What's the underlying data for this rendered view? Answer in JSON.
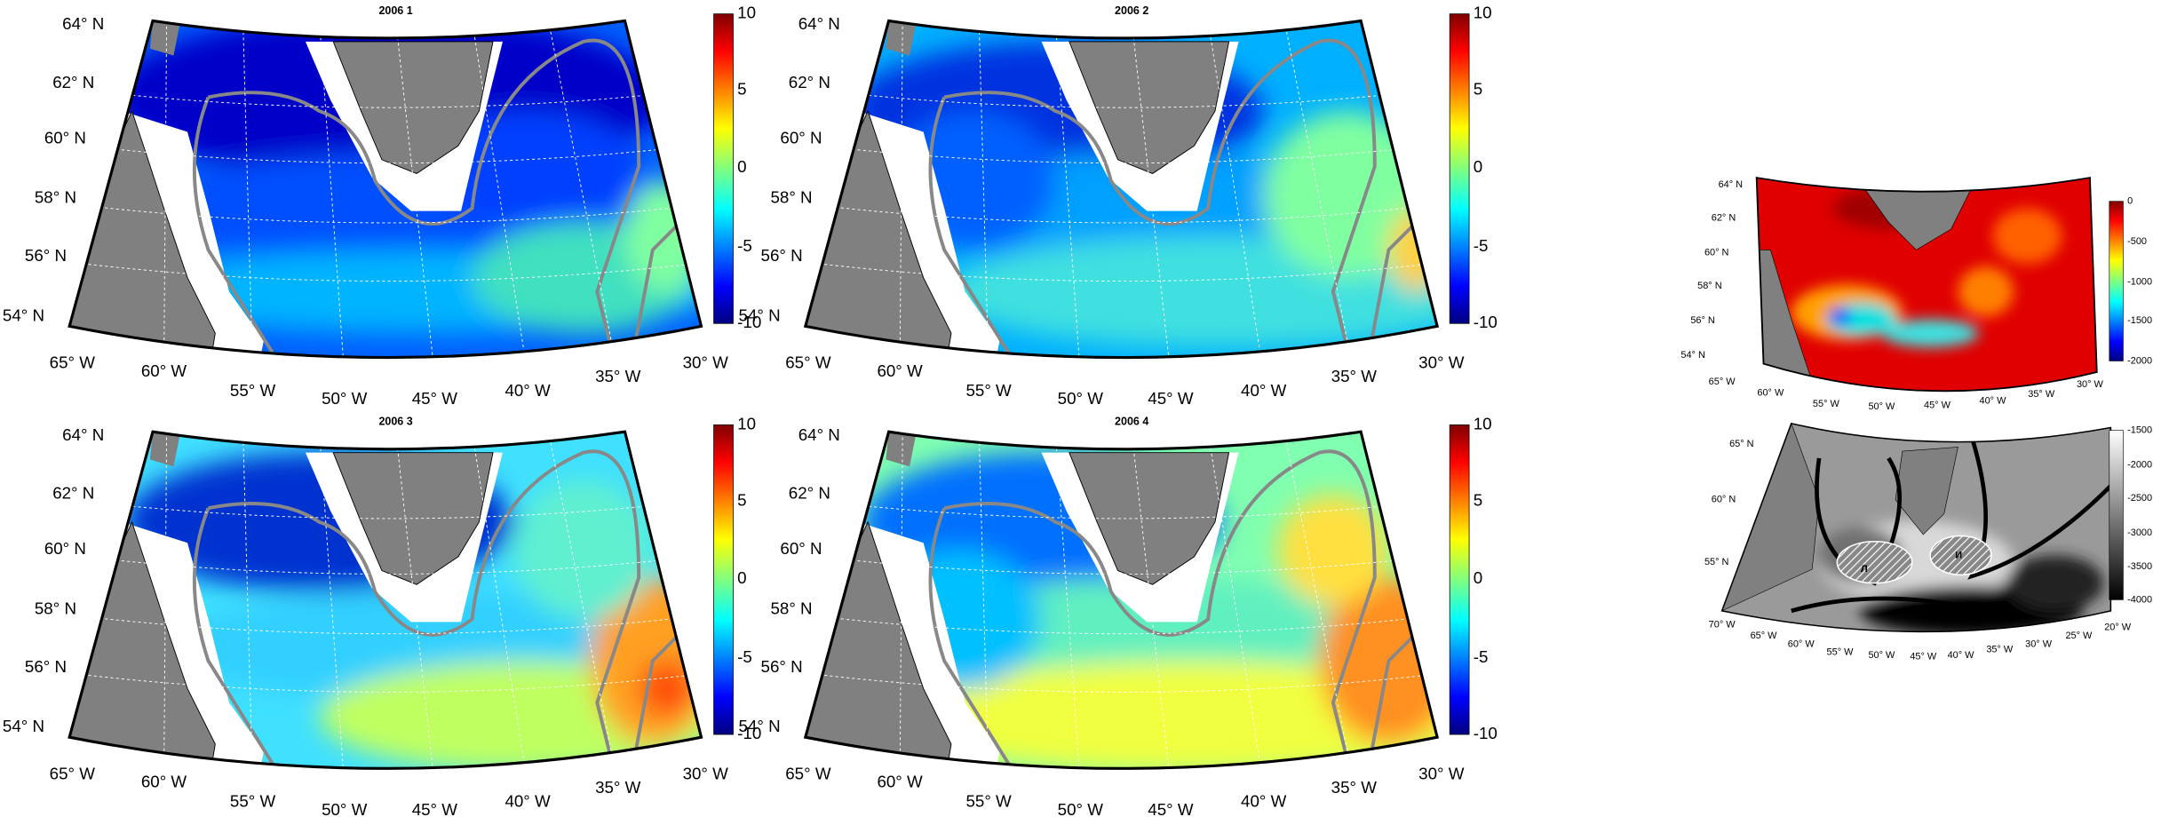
{
  "panels": [
    {
      "title": "2006 1",
      "lat_labels": [
        "64° N",
        "62° N",
        "60° N",
        "58° N",
        "56° N",
        "54° N"
      ],
      "lon_labels": [
        "65° W",
        "60° W",
        "55° W",
        "50° W",
        "45° W",
        "40° W",
        "35° W",
        "30° W"
      ],
      "colorbar_ticks": [
        "10",
        "5",
        "0",
        "-5",
        "-10"
      ]
    },
    {
      "title": "2006 2",
      "lat_labels": [
        "64° N",
        "62° N",
        "60° N",
        "58° N",
        "56° N",
        "54° N"
      ],
      "lon_labels": [
        "65° W",
        "60° W",
        "55° W",
        "50° W",
        "45° W",
        "40° W",
        "35° W",
        "30° W"
      ],
      "colorbar_ticks": [
        "10",
        "5",
        "0",
        "-5",
        "-10"
      ]
    },
    {
      "title": "2006 3",
      "lat_labels": [
        "64° N",
        "62° N",
        "60° N",
        "58° N",
        "56° N",
        "54° N"
      ],
      "lon_labels": [
        "65° W",
        "60° W",
        "55° W",
        "50° W",
        "45° W",
        "40° W",
        "35° W",
        "30° W"
      ],
      "colorbar_ticks": [
        "10",
        "5",
        "0",
        "-5",
        "-10"
      ]
    },
    {
      "title": "2006 4",
      "lat_labels": [
        "64° N",
        "62° N",
        "60° N",
        "58° N",
        "56° N",
        "54° N"
      ],
      "lon_labels": [
        "65° W",
        "60° W",
        "55° W",
        "50° W",
        "45° W",
        "40° W",
        "35° W",
        "30° W"
      ],
      "colorbar_ticks": [
        "10",
        "5",
        "0",
        "-5",
        "-10"
      ]
    }
  ],
  "inset_top": {
    "lat_labels": [
      "64° N",
      "62° N",
      "60° N",
      "58° N",
      "56° N",
      "54° N"
    ],
    "lon_labels": [
      "65° W",
      "60° W",
      "55° W",
      "50° W",
      "45° W",
      "40° W",
      "35° W",
      "30° W"
    ],
    "colorbar_ticks": [
      "0",
      "-500",
      "-1000",
      "-1500",
      "-2000"
    ]
  },
  "inset_bottom": {
    "lat_labels": [
      "65° N",
      "60° N",
      "55° N"
    ],
    "lon_labels": [
      "70° W",
      "65° W",
      "60° W",
      "55° W",
      "50° W",
      "45° W",
      "40° W",
      "35° W",
      "30° W",
      "25° W",
      "20° W"
    ],
    "colorbar_ticks": [
      "-1500",
      "-2000",
      "-2500",
      "-3000",
      "-3500",
      "-4000"
    ],
    "region_labels": [
      "Л",
      "И"
    ]
  }
}
